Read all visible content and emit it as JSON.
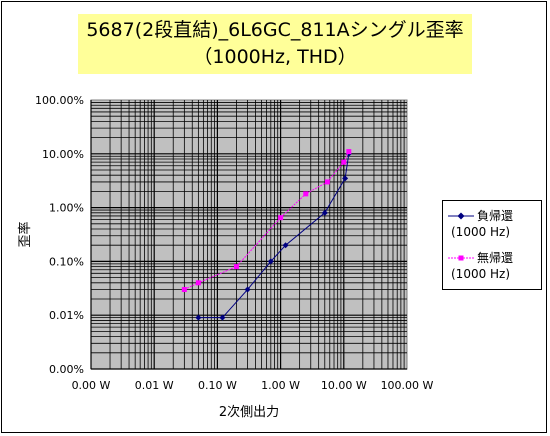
{
  "chart_data": {
    "type": "scatter",
    "title": "5687(2段直結)_6L6GC_811Aシングル歪率",
    "subtitle": "（1000Hz, THD）",
    "xlabel": "2次側出力",
    "ylabel": "歪率",
    "x_scale": "log",
    "y_scale": "log",
    "xlim": [
      0.001,
      100
    ],
    "ylim": [
      0.001,
      100
    ],
    "x_ticks": [
      0.001,
      0.01,
      0.1,
      1,
      10,
      100
    ],
    "y_ticks": [
      0.001,
      0.01,
      0.1,
      1,
      10,
      100
    ],
    "x_tick_labels": [
      "0.00 W",
      "0.01 W",
      "0.10 W",
      "1.00 W",
      "10.00 W",
      "100.00 W"
    ],
    "y_tick_labels": [
      "0.00%",
      "0.01%",
      "0.10%",
      "1.00%",
      "10.00%",
      "100.00%"
    ],
    "grid": true,
    "plot_background": "#c0c0c0",
    "chart_background": "#ffffff",
    "title_background": "#ffff99",
    "legend_position": "right",
    "series": [
      {
        "name": "負帰還",
        "name_sub": "(1000 Hz)",
        "color": "#000080",
        "marker": "diamond",
        "points": [
          [
            0.05,
            0.009
          ],
          [
            0.12,
            0.009
          ],
          [
            0.3,
            0.03
          ],
          [
            0.7,
            0.1
          ],
          [
            1.2,
            0.2
          ],
          [
            5.0,
            0.8
          ],
          [
            10.5,
            3.5
          ],
          [
            12.0,
            10.0
          ]
        ]
      },
      {
        "name": "無帰還",
        "name_sub": "(1000 Hz)",
        "color": "#ff00ff",
        "marker": "square",
        "points": [
          [
            0.03,
            0.03
          ],
          [
            0.05,
            0.04
          ],
          [
            0.2,
            0.08
          ],
          [
            1.0,
            0.65
          ],
          [
            2.5,
            1.8
          ],
          [
            5.5,
            3.0
          ],
          [
            10.0,
            7.0
          ],
          [
            12.0,
            11.0
          ]
        ]
      }
    ]
  }
}
